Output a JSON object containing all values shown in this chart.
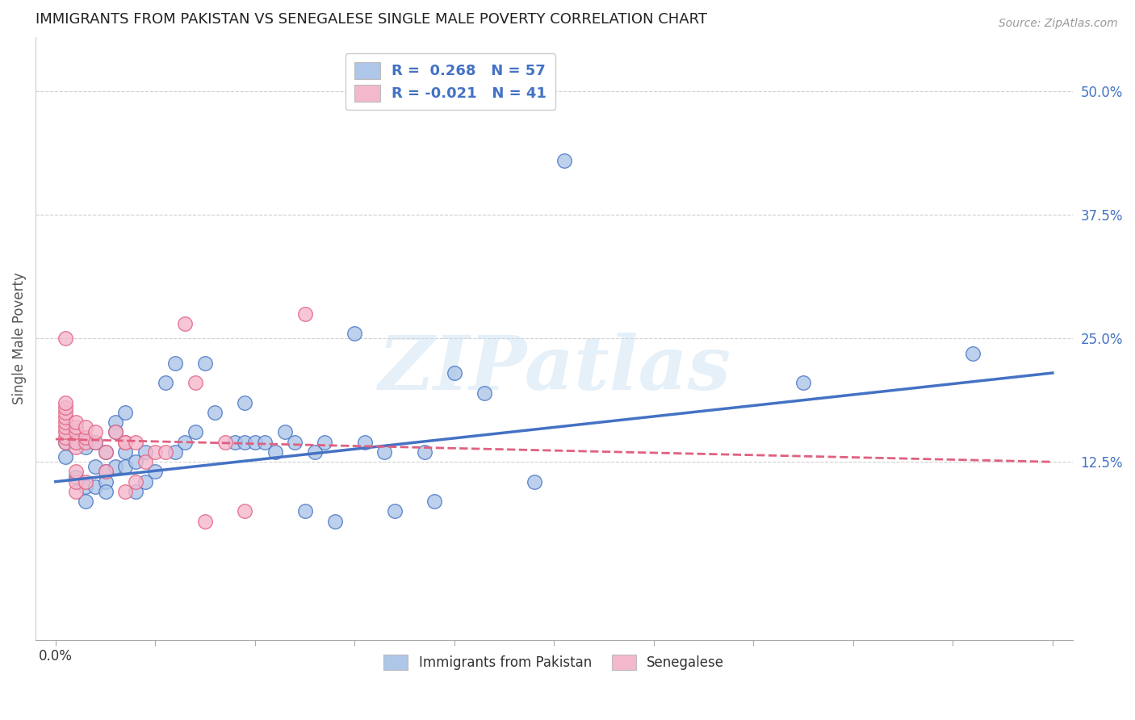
{
  "title": "IMMIGRANTS FROM PAKISTAN VS SENEGALESE SINGLE MALE POVERTY CORRELATION CHART",
  "source": "Source: ZipAtlas.com",
  "ylabel": "Single Male Poverty",
  "ylabel_ticks_right": [
    "50.0%",
    "37.5%",
    "25.0%",
    "12.5%"
  ],
  "ylabel_values_right": [
    0.5,
    0.375,
    0.25,
    0.125
  ],
  "xlabel_tick_positions": [
    0.0,
    0.01,
    0.02,
    0.03,
    0.04,
    0.05,
    0.06,
    0.07,
    0.08,
    0.09,
    0.1
  ],
  "xlabel_labeled": {
    "0.0": "0.0%"
  },
  "xlim": [
    -0.002,
    0.102
  ],
  "ylim": [
    -0.055,
    0.555
  ],
  "blue_R": "0.268",
  "blue_N": "57",
  "pink_R": "-0.021",
  "pink_N": "41",
  "blue_color": "#aec6e8",
  "blue_edge_color": "#4472c4",
  "pink_color": "#f4b8cc",
  "pink_edge_color": "#e06080",
  "blue_points_x": [
    0.001,
    0.001,
    0.002,
    0.002,
    0.003,
    0.003,
    0.003,
    0.003,
    0.004,
    0.004,
    0.004,
    0.005,
    0.005,
    0.005,
    0.005,
    0.006,
    0.006,
    0.006,
    0.007,
    0.007,
    0.007,
    0.008,
    0.008,
    0.009,
    0.009,
    0.01,
    0.011,
    0.012,
    0.012,
    0.013,
    0.014,
    0.015,
    0.016,
    0.018,
    0.019,
    0.019,
    0.02,
    0.021,
    0.022,
    0.023,
    0.024,
    0.025,
    0.026,
    0.027,
    0.028,
    0.03,
    0.031,
    0.033,
    0.034,
    0.037,
    0.038,
    0.04,
    0.043,
    0.048,
    0.051,
    0.075,
    0.092
  ],
  "blue_points_y": [
    0.145,
    0.13,
    0.145,
    0.11,
    0.15,
    0.14,
    0.1,
    0.085,
    0.145,
    0.12,
    0.1,
    0.135,
    0.115,
    0.105,
    0.095,
    0.165,
    0.155,
    0.12,
    0.135,
    0.175,
    0.12,
    0.125,
    0.095,
    0.135,
    0.105,
    0.115,
    0.205,
    0.225,
    0.135,
    0.145,
    0.155,
    0.225,
    0.175,
    0.145,
    0.185,
    0.145,
    0.145,
    0.145,
    0.135,
    0.155,
    0.145,
    0.075,
    0.135,
    0.145,
    0.065,
    0.255,
    0.145,
    0.135,
    0.075,
    0.135,
    0.085,
    0.215,
    0.195,
    0.105,
    0.43,
    0.205,
    0.235
  ],
  "pink_points_x": [
    0.001,
    0.001,
    0.001,
    0.001,
    0.001,
    0.001,
    0.001,
    0.001,
    0.001,
    0.001,
    0.002,
    0.002,
    0.002,
    0.002,
    0.002,
    0.002,
    0.002,
    0.002,
    0.003,
    0.003,
    0.003,
    0.003,
    0.004,
    0.004,
    0.005,
    0.005,
    0.006,
    0.007,
    0.007,
    0.007,
    0.008,
    0.008,
    0.009,
    0.01,
    0.011,
    0.013,
    0.014,
    0.015,
    0.017,
    0.019,
    0.025
  ],
  "pink_points_y": [
    0.145,
    0.15,
    0.155,
    0.16,
    0.165,
    0.17,
    0.175,
    0.18,
    0.185,
    0.25,
    0.14,
    0.145,
    0.155,
    0.16,
    0.165,
    0.095,
    0.105,
    0.115,
    0.145,
    0.15,
    0.16,
    0.105,
    0.145,
    0.155,
    0.135,
    0.115,
    0.155,
    0.145,
    0.095,
    0.145,
    0.145,
    0.105,
    0.125,
    0.135,
    0.135,
    0.265,
    0.205,
    0.065,
    0.145,
    0.075,
    0.275
  ],
  "blue_line_x": [
    0.0,
    0.1
  ],
  "blue_line_y": [
    0.105,
    0.215
  ],
  "pink_line_x": [
    0.0,
    0.1
  ],
  "pink_line_y": [
    0.148,
    0.125
  ],
  "watermark": "ZIPatlas",
  "legend_label_blue": "Immigrants from Pakistan",
  "legend_label_pink": "Senegalese",
  "grid_color": "#d0d0d0",
  "background_color": "#ffffff"
}
